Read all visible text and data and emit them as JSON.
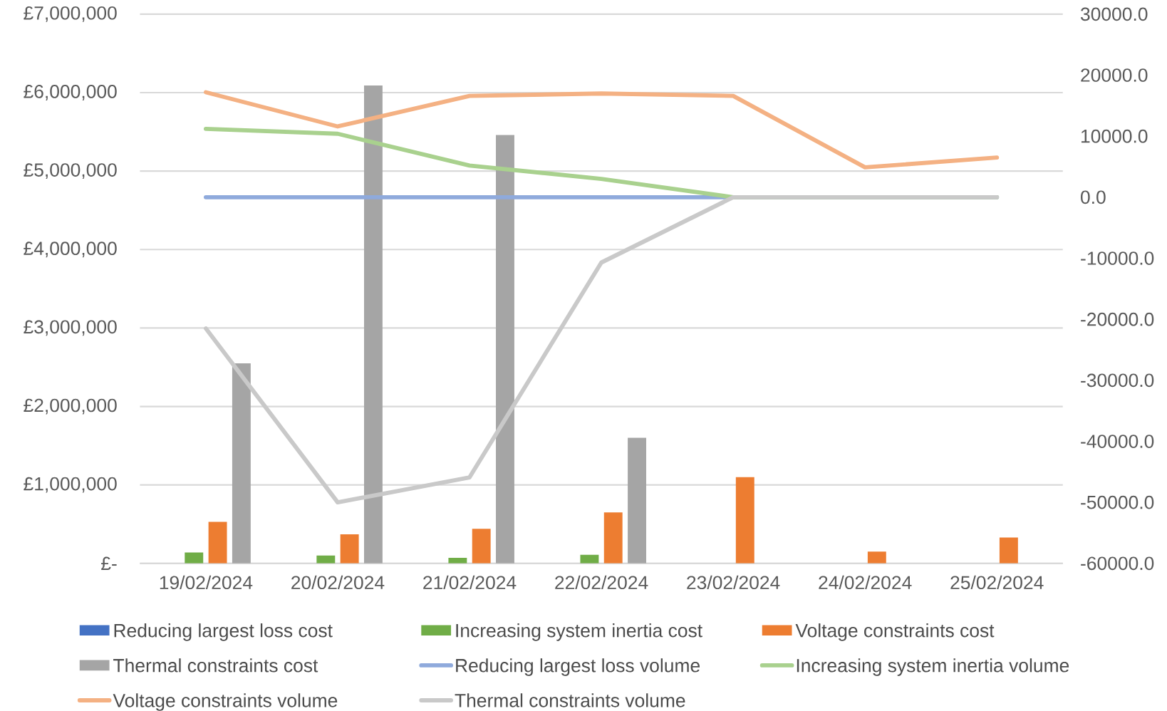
{
  "chart_data": {
    "type": "bar",
    "categories": [
      "19/02/2024",
      "20/02/2024",
      "21/02/2024",
      "22/02/2024",
      "23/02/2024",
      "24/02/2024",
      "25/02/2024"
    ],
    "series": [
      {
        "name": "Reducing largest loss cost",
        "color": "#4472c4",
        "values": [
          0,
          0,
          0,
          0,
          0,
          0,
          0
        ]
      },
      {
        "name": "Increasing system inertia cost",
        "color": "#70ad47",
        "values": [
          140000,
          100000,
          70000,
          110000,
          0,
          0,
          0
        ]
      },
      {
        "name": "Voltage constraints cost",
        "color": "#ed7d31",
        "values": [
          530000,
          370000,
          440000,
          650000,
          1100000,
          150000,
          330000
        ]
      },
      {
        "name": "Thermal constraints cost",
        "color": "#a5a5a5",
        "values": [
          2550000,
          6090000,
          5460000,
          1600000,
          0,
          0,
          0
        ]
      },
      {
        "name": "Reducing largest loss volume",
        "type": "line",
        "axis": "y2",
        "color": "#8faadc",
        "values": [
          0,
          0,
          0,
          0,
          0,
          0,
          0
        ]
      },
      {
        "name": "Increasing system inertia volume",
        "type": "line",
        "axis": "y2",
        "color": "#a9d18e",
        "values": [
          11200,
          10400,
          5200,
          3000,
          0,
          0,
          0
        ]
      },
      {
        "name": "Voltage constraints volume",
        "type": "line",
        "axis": "y2",
        "color": "#f4b183",
        "values": [
          17200,
          11600,
          16600,
          17000,
          16600,
          4900,
          6500
        ]
      },
      {
        "name": "Thermal constraints volume",
        "type": "line",
        "axis": "y2",
        "color": "#c9c9c9",
        "values": [
          -21500,
          -50000,
          -45900,
          -10700,
          0,
          0,
          0
        ]
      }
    ],
    "ylim": [
      0,
      7000000
    ],
    "yticks": [
      {
        "value": 0,
        "label": "£-"
      },
      {
        "value": 1000000,
        "label": "£1,000,000"
      },
      {
        "value": 2000000,
        "label": "£2,000,000"
      },
      {
        "value": 3000000,
        "label": "£3,000,000"
      },
      {
        "value": 4000000,
        "label": "£4,000,000"
      },
      {
        "value": 5000000,
        "label": "£5,000,000"
      },
      {
        "value": 6000000,
        "label": "£6,000,000"
      },
      {
        "value": 7000000,
        "label": "£7,000,000"
      }
    ],
    "y2lim": [
      -60000,
      30000
    ],
    "y2ticks": [
      {
        "value": -60000,
        "label": "-60000.0"
      },
      {
        "value": -50000,
        "label": "-50000.0"
      },
      {
        "value": -40000,
        "label": "-40000.0"
      },
      {
        "value": -30000,
        "label": "-30000.0"
      },
      {
        "value": -20000,
        "label": "-20000.0"
      },
      {
        "value": -10000,
        "label": "-10000.0"
      },
      {
        "value": 0,
        "label": "0.0"
      },
      {
        "value": 10000,
        "label": "10000.0"
      },
      {
        "value": 20000,
        "label": "20000.0"
      },
      {
        "value": 30000,
        "label": "30000.0"
      }
    ],
    "grid": "y",
    "legend": "bottom",
    "line_style": "solid",
    "marker": "none"
  }
}
